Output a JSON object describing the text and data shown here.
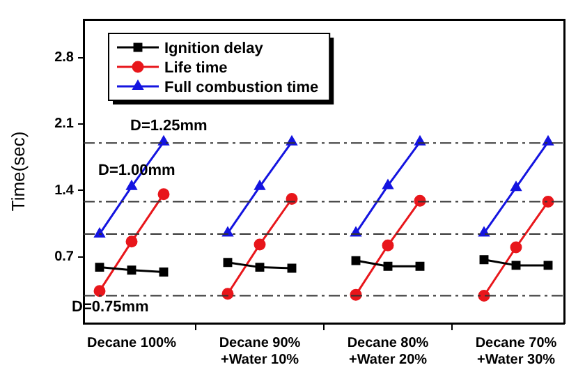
{
  "chart_data": {
    "type": "line",
    "ylabel": "Time(sec)",
    "categories": [
      null,
      "Decane 100%",
      null,
      null,
      null,
      "Decane 90%\n+Water 10%",
      null,
      null,
      null,
      "Decane 80%\n+Water 20%",
      null,
      null,
      null,
      "Decane 70%\n+Water 30%",
      null
    ],
    "ylim": [
      0,
      3.2
    ],
    "yticks": [
      0.7,
      1.4,
      2.1,
      2.8
    ],
    "series": [
      {
        "name": "Ignition delay",
        "color": "#000000",
        "marker": "square",
        "values": [
          0.59,
          0.56,
          0.54,
          null,
          0.64,
          0.59,
          0.58,
          null,
          0.66,
          0.6,
          0.6,
          null,
          0.67,
          0.61,
          0.61
        ]
      },
      {
        "name": "Life time",
        "color": "#e8161b",
        "marker": "circle",
        "values": [
          0.34,
          0.86,
          1.36,
          null,
          0.31,
          0.83,
          1.31,
          null,
          0.3,
          0.82,
          1.29,
          null,
          0.29,
          0.8,
          1.28
        ]
      },
      {
        "name": "Full combustion time",
        "color": "#1414e0",
        "marker": "triangle",
        "values": [
          0.94,
          1.44,
          1.91,
          null,
          0.95,
          1.44,
          1.91,
          null,
          0.95,
          1.45,
          1.91,
          null,
          0.95,
          1.43,
          1.91
        ]
      }
    ],
    "ref_lines": [
      {
        "axis": "y",
        "value": 0.29,
        "color": "#333333",
        "line_style": "dashed"
      },
      {
        "axis": "y",
        "value": 0.94,
        "color": "#333333",
        "line_style": "dashed"
      },
      {
        "axis": "y",
        "value": 1.28,
        "color": "#333333",
        "line_style": "dashed"
      },
      {
        "axis": "y",
        "value": 1.9,
        "color": "#333333",
        "line_style": "dashed"
      }
    ],
    "annotations": [
      "D=0.75mm",
      "D=1.00mm",
      "D=1.25mm"
    ],
    "legend": "top left",
    "grid": false
  }
}
